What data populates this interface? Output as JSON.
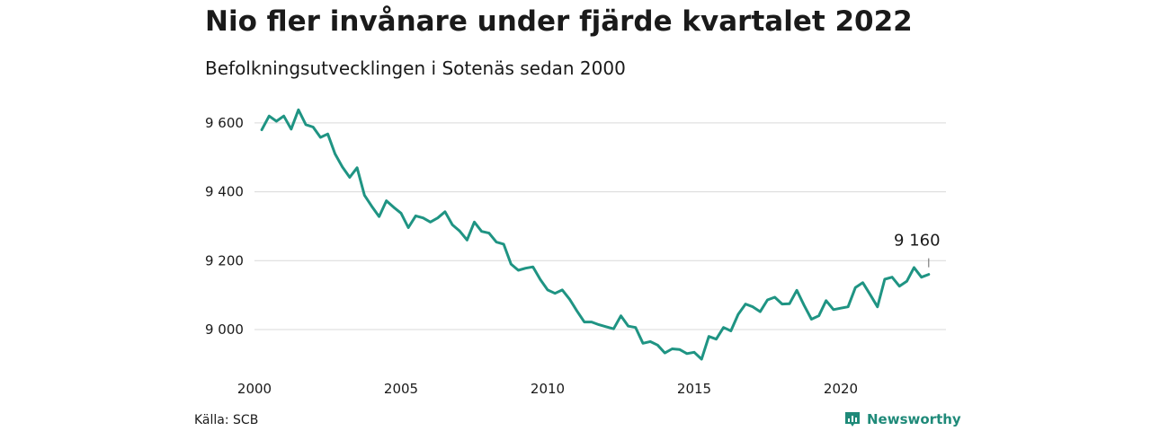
{
  "header": {
    "title": "Nio fler invånare under fjärde kvartalet 2022",
    "subtitle": "Befolkningsutvecklingen i Sotenäs sedan 2000"
  },
  "footer": {
    "source": "Källa: SCB",
    "brand": "Newsworthy",
    "brand_icon": "newsworthy-logo-icon"
  },
  "colors": {
    "line": "#1f9483",
    "grid": "#d9d9d9",
    "brand": "#1f8a79"
  },
  "chart_data": {
    "type": "line",
    "title": "Nio fler invånare under fjärde kvartalet 2022",
    "subtitle": "Befolkningsutvecklingen i Sotenäs sedan 2000",
    "xlabel": "",
    "ylabel": "",
    "grid": true,
    "xlim": [
      2000.0,
      2023.0
    ],
    "ylim": [
      8900,
      9640
    ],
    "x_ticks": [
      2000,
      2005,
      2010,
      2015,
      2020
    ],
    "x_tick_labels": [
      "2000",
      "2005",
      "2010",
      "2015",
      "2020"
    ],
    "y_ticks": [
      9000,
      9200,
      9400,
      9600
    ],
    "y_tick_labels": [
      "9 000",
      "9 200",
      "9 400",
      "9 600"
    ],
    "annotation": {
      "label": "9 160",
      "value": 9160
    },
    "series": [
      {
        "x": [
          2000.25,
          2000.5,
          2000.75,
          2001.0,
          2001.25,
          2001.5,
          2001.75,
          2002.0,
          2002.25,
          2002.5,
          2002.75,
          2003.0,
          2003.25,
          2003.5,
          2003.75,
          2004.0,
          2004.25,
          2004.5,
          2004.75,
          2005.0,
          2005.25,
          2005.5,
          2005.75,
          2006.0,
          2006.25,
          2006.5,
          2006.75,
          2007.0,
          2007.25,
          2007.5,
          2007.75,
          2008.0,
          2008.25,
          2008.5,
          2008.75,
          2009.0,
          2009.25,
          2009.5,
          2009.75,
          2010.0,
          2010.25,
          2010.5,
          2010.75,
          2011.0,
          2011.25,
          2011.5,
          2011.75,
          2012.0,
          2012.25,
          2012.5,
          2012.75,
          2013.0,
          2013.25,
          2013.5,
          2013.75,
          2014.0,
          2014.25,
          2014.5,
          2014.75,
          2015.0,
          2015.25,
          2015.5,
          2015.75,
          2016.0,
          2016.25,
          2016.5,
          2016.75,
          2017.0,
          2017.25,
          2017.5,
          2017.75,
          2018.0,
          2018.25,
          2018.5,
          2018.75,
          2019.0,
          2019.25,
          2019.5,
          2019.75,
          2020.0,
          2020.25,
          2020.5,
          2020.75,
          2021.0,
          2021.25,
          2021.5,
          2021.75,
          2022.0,
          2022.25,
          2022.5,
          2022.75,
          2023.0
        ],
        "values": [
          9580,
          9620,
          9605,
          9620,
          9582,
          9638,
          9595,
          9588,
          9558,
          9568,
          9510,
          9472,
          9442,
          9470,
          9390,
          9358,
          9328,
          9374,
          9355,
          9338,
          9296,
          9330,
          9324,
          9312,
          9324,
          9342,
          9304,
          9286,
          9260,
          9312,
          9285,
          9280,
          9254,
          9248,
          9190,
          9172,
          9178,
          9182,
          9145,
          9115,
          9105,
          9115,
          9088,
          9054,
          9022,
          9022,
          9014,
          9008,
          9002,
          9040,
          9010,
          9006,
          8960,
          8965,
          8955,
          8932,
          8944,
          8942,
          8930,
          8934,
          8914,
          8980,
          8972,
          9006,
          8996,
          9044,
          9074,
          9066,
          9052,
          9086,
          9094,
          9074,
          9075,
          9114,
          9070,
          9030,
          9040,
          9084,
          9058,
          9062,
          9066,
          9122,
          9136,
          9102,
          9066,
          9146,
          9152,
          9126,
          9140,
          9180,
          9152,
          9160
        ]
      }
    ]
  }
}
